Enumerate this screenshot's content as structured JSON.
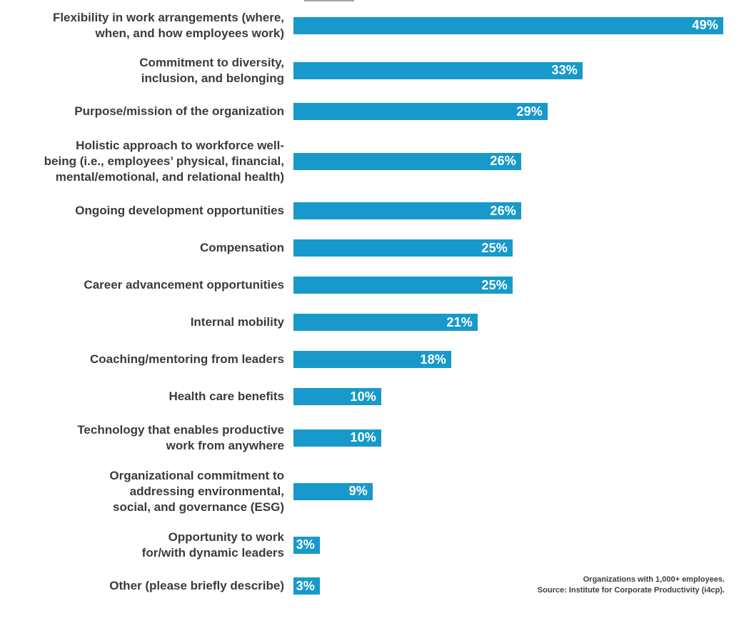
{
  "chart_data": {
    "type": "bar",
    "orientation": "horizontal",
    "title": "",
    "xlabel": "",
    "ylabel": "",
    "value_unit": "%",
    "xlim": [
      0,
      49
    ],
    "grid": false,
    "legend": false,
    "bar_color": "#1899cb",
    "value_label_color": "#ffffff",
    "categories": [
      "Flexibility in work arrangements (where, when, and how employees work)",
      "Commitment to diversity, inclusion, and belonging",
      "Purpose/mission of the organization",
      "Holistic approach to workforce well-being (i.e., employees’ physical, financial, mental/emotional, and relational health)",
      "Ongoing development opportunities",
      "Compensation",
      "Career advancement opportunities",
      "Internal mobility",
      "Coaching/mentoring from leaders",
      "Health care benefits",
      "Technology that enables productive work from anywhere",
      "Organizational commitment to addressing environmental, social, and governance (ESG)",
      "Opportunity to work for/with dynamic leaders",
      "Other (please briefly describe)"
    ],
    "category_lines": [
      [
        "Flexibility in work arrangements (where,",
        "when, and how employees work)"
      ],
      [
        "Commitment to diversity,",
        "inclusion, and belonging"
      ],
      [
        "Purpose/mission of the organization"
      ],
      [
        "Holistic approach to workforce well-",
        "being (i.e., employees’ physical, financial,",
        "mental/emotional, and relational health)"
      ],
      [
        "Ongoing development opportunities"
      ],
      [
        "Compensation"
      ],
      [
        "Career advancement opportunities"
      ],
      [
        "Internal mobility"
      ],
      [
        "Coaching/mentoring from leaders"
      ],
      [
        "Health care benefits"
      ],
      [
        "Technology that enables productive",
        "work from anywhere"
      ],
      [
        "Organizational commitment to",
        "addressing environmental,",
        "social, and governance (ESG)"
      ],
      [
        "Opportunity to work",
        "for/with dynamic leaders"
      ],
      [
        "Other (please briefly describe)"
      ]
    ],
    "values": [
      49,
      33,
      29,
      26,
      26,
      25,
      25,
      21,
      18,
      10,
      10,
      9,
      3,
      3
    ],
    "value_labels": [
      "49%",
      "33%",
      "29%",
      "26%",
      "26%",
      "25%",
      "25%",
      "21%",
      "18%",
      "10%",
      "10%",
      "9%",
      "3%",
      "3%"
    ]
  },
  "footer": {
    "line1": "Organizations with 1,000+ employees.",
    "line2": "Source: Institute for Corporate Productivity (i4cp)."
  }
}
